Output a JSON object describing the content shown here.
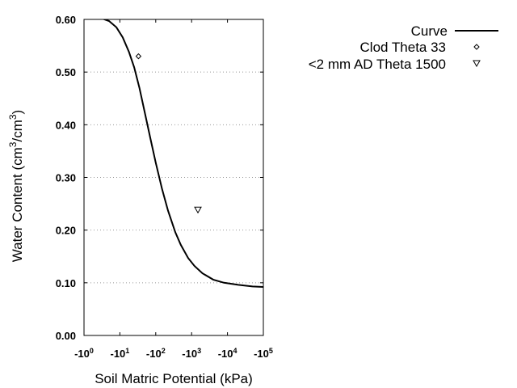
{
  "chart_data": {
    "type": "line",
    "xlabel": "Soil Matric Potential (kPa)",
    "ylabel": "Water Content (cm³/cm³)",
    "ylabel_parts": {
      "a": "Water Content (cm",
      "b": "3",
      "c": "/cm",
      "d": "3",
      "e": ")"
    },
    "x_scale": "log10 (negative potential)",
    "x_range": [
      -1,
      -100000
    ],
    "y_range": [
      0,
      0.6
    ],
    "grid": "horizontal dotted",
    "legend_placement": "top-right",
    "x_ticks": [
      {
        "value": -1,
        "base": "-10",
        "exp": "0"
      },
      {
        "value": -10,
        "base": "-10",
        "exp": "1"
      },
      {
        "value": -100,
        "base": "-10",
        "exp": "2"
      },
      {
        "value": -1000,
        "base": "-10",
        "exp": "3"
      },
      {
        "value": -10000,
        "base": "-10",
        "exp": "4"
      },
      {
        "value": -100000,
        "base": "-10",
        "exp": "5"
      }
    ],
    "y_ticks": [
      {
        "value": 0.0,
        "label": "0.00"
      },
      {
        "value": 0.1,
        "label": "0.10"
      },
      {
        "value": 0.2,
        "label": "0.20"
      },
      {
        "value": 0.3,
        "label": "0.30"
      },
      {
        "value": 0.4,
        "label": "0.40"
      },
      {
        "value": 0.5,
        "label": "0.50"
      },
      {
        "value": 0.6,
        "label": "0.60"
      }
    ],
    "series": [
      {
        "name": "Curve",
        "kind": "line",
        "color": "#000000",
        "points": [
          [
            -1,
            0.607
          ],
          [
            -2.5,
            0.604
          ],
          [
            -5,
            0.597
          ],
          [
            -8,
            0.585
          ],
          [
            -12,
            0.566
          ],
          [
            -18,
            0.538
          ],
          [
            -25,
            0.509
          ],
          [
            -35,
            0.47
          ],
          [
            -50,
            0.422
          ],
          [
            -70,
            0.376
          ],
          [
            -100,
            0.328
          ],
          [
            -150,
            0.278
          ],
          [
            -220,
            0.237
          ],
          [
            -350,
            0.196
          ],
          [
            -500,
            0.172
          ],
          [
            -800,
            0.147
          ],
          [
            -1200,
            0.132
          ],
          [
            -2000,
            0.118
          ],
          [
            -4000,
            0.106
          ],
          [
            -8000,
            0.1
          ],
          [
            -20000,
            0.096
          ],
          [
            -50000,
            0.093
          ],
          [
            -100000,
            0.092
          ]
        ]
      },
      {
        "name": "Clod Theta 33",
        "kind": "point",
        "marker": "diamond",
        "points": [
          [
            -33,
            0.53
          ]
        ]
      },
      {
        "name": "<2 mm AD Theta 1500",
        "kind": "point",
        "marker": "triangle-down",
        "points": [
          [
            -1500,
            0.239
          ]
        ]
      }
    ]
  }
}
